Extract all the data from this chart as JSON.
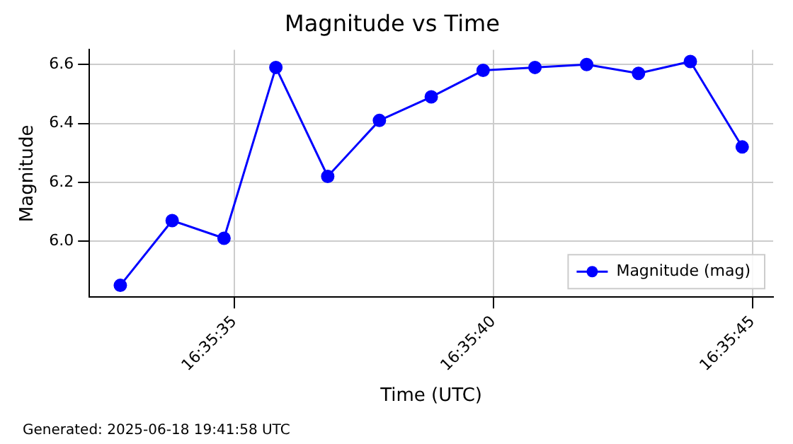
{
  "chart_data": {
    "type": "line",
    "title": "Magnitude vs Time",
    "xlabel": "Time (UTC)",
    "ylabel": "Magnitude",
    "x": [
      16.592444,
      16.592722,
      16.593,
      16.593278,
      16.593556,
      16.593833,
      16.594111,
      16.594389,
      16.594667,
      16.594944,
      16.595222,
      16.5955,
      16.595778
    ],
    "series": [
      {
        "name": "Magnitude (mag)",
        "color": "#0000ff",
        "values": [
          5.85,
          6.07,
          6.01,
          6.59,
          6.22,
          6.41,
          6.49,
          6.58,
          6.59,
          6.6,
          6.57,
          6.61,
          6.32
        ]
      }
    ],
    "xlim": [
      16.592278,
      16.595944
    ],
    "xticks": [
      {
        "value": 16.593056,
        "label": "16:35:35"
      },
      {
        "value": 16.594444,
        "label": "16:35:40"
      },
      {
        "value": 16.595833,
        "label": "16:35:45"
      }
    ],
    "ylim": [
      5.81,
      6.65
    ],
    "yticks": [
      {
        "value": 6,
        "label": "6.0"
      },
      {
        "value": 6.2,
        "label": "6.2"
      },
      {
        "value": 6.4,
        "label": "6.4"
      },
      {
        "value": 6.6,
        "label": "6.6"
      }
    ],
    "grid": true,
    "legend": "bottom right",
    "marker": "circle",
    "line_style": "solid",
    "annotations": [
      "Generated: 2025-06-18 19:41:58 UTC"
    ]
  }
}
